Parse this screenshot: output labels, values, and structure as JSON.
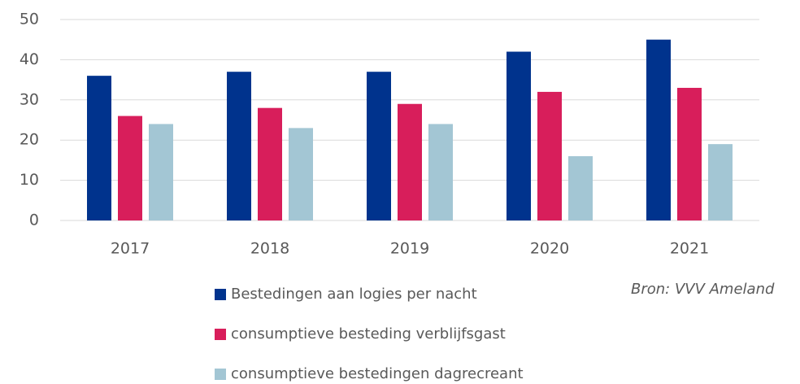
{
  "chart_data": {
    "type": "bar",
    "categories": [
      "2017",
      "2018",
      "2019",
      "2020",
      "2021"
    ],
    "series": [
      {
        "name": "Bestedingen aan logies per nacht",
        "color": "#00338d",
        "values": [
          36,
          37,
          37,
          42,
          45
        ]
      },
      {
        "name": "consumptieve besteding verblijfsgast",
        "color": "#d81e5b",
        "values": [
          26,
          28,
          29,
          32,
          33
        ]
      },
      {
        "name": "consumptieve bestedingen dagrecreant",
        "color": "#a3c6d4",
        "values": [
          24,
          23,
          24,
          16,
          19
        ]
      }
    ],
    "ylim": [
      0,
      50
    ],
    "yticks": [
      0,
      10,
      20,
      30,
      40,
      50
    ],
    "grid": true,
    "annotation": "Bron: VVV Ameland",
    "legend": "bottom"
  }
}
